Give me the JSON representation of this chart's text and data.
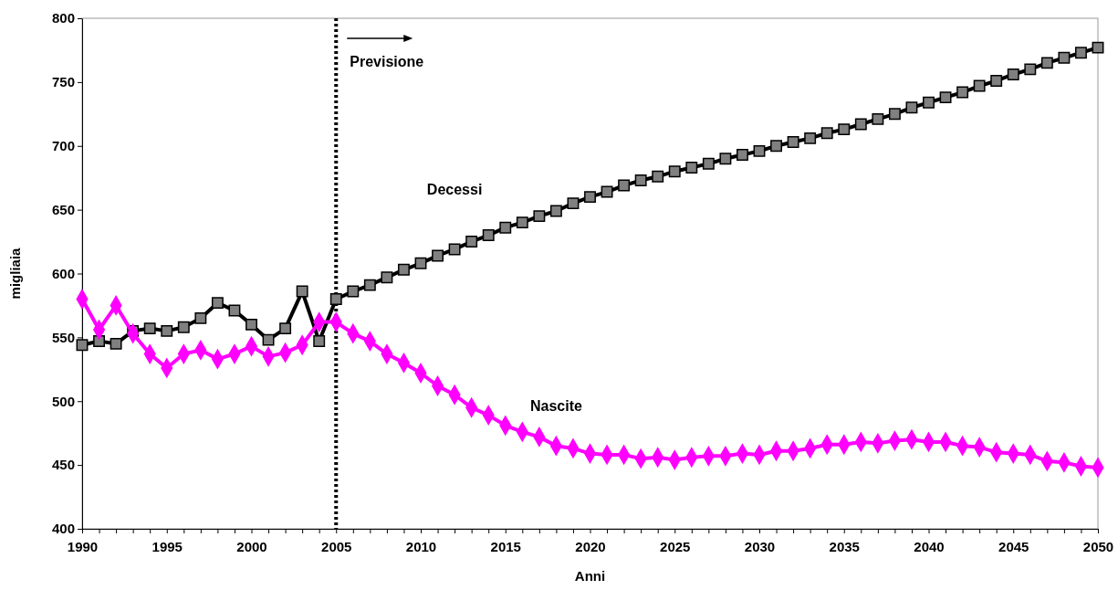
{
  "chart_data": {
    "type": "line",
    "xlabel": "Anni",
    "ylabel": "migliaia",
    "x": [
      1990,
      1991,
      1992,
      1993,
      1994,
      1995,
      1996,
      1997,
      1998,
      1999,
      2000,
      2001,
      2002,
      2003,
      2004,
      2005,
      2006,
      2007,
      2008,
      2009,
      2010,
      2011,
      2012,
      2013,
      2014,
      2015,
      2016,
      2017,
      2018,
      2019,
      2020,
      2021,
      2022,
      2023,
      2024,
      2025,
      2026,
      2027,
      2028,
      2029,
      2030,
      2031,
      2032,
      2033,
      2034,
      2035,
      2036,
      2037,
      2038,
      2039,
      2040,
      2041,
      2042,
      2043,
      2044,
      2045,
      2046,
      2047,
      2048,
      2049,
      2050
    ],
    "series": [
      {
        "name": "Decessi",
        "color": "#000000",
        "marker": "square",
        "values": [
          544,
          547,
          545,
          555,
          557,
          555,
          558,
          565,
          577,
          571,
          560,
          548,
          557,
          586,
          547,
          580,
          586,
          591,
          597,
          603,
          608,
          614,
          619,
          625,
          630,
          636,
          640,
          645,
          649,
          655,
          660,
          664,
          669,
          673,
          676,
          680,
          683,
          686,
          690,
          693,
          696,
          700,
          703,
          706,
          710,
          713,
          717,
          721,
          725,
          730,
          734,
          738,
          742,
          747,
          751,
          756,
          760,
          765,
          769,
          773,
          777
        ]
      },
      {
        "name": "Nascite",
        "color": "#ff00ff",
        "marker": "diamond",
        "values": [
          580,
          556,
          575,
          553,
          537,
          526,
          537,
          540,
          533,
          537,
          543,
          535,
          538,
          544,
          562,
          562,
          553,
          547,
          537,
          530,
          522,
          512,
          505,
          495,
          489,
          481,
          476,
          472,
          465,
          463,
          459,
          458,
          458,
          455,
          456,
          454,
          456,
          457,
          457,
          459,
          458,
          461,
          461,
          463,
          466,
          466,
          468,
          467,
          469,
          470,
          468,
          468,
          465,
          464,
          460,
          459,
          458,
          453,
          452,
          449,
          448
        ]
      }
    ],
    "xlim": [
      1990,
      2050
    ],
    "xticks": [
      1990,
      {
        "value": 1991,
        "label": null
      },
      {
        "value": 1992,
        "label": null
      },
      {
        "value": 1993,
        "label": null
      },
      {
        "value": 1994,
        "label": null
      },
      1995,
      {
        "value": 1996,
        "label": null
      },
      {
        "value": 1997,
        "label": null
      },
      {
        "value": 1998,
        "label": null
      },
      {
        "value": 1999,
        "label": null
      },
      2000,
      {
        "value": 2001,
        "label": null
      },
      {
        "value": 2002,
        "label": null
      },
      {
        "value": 2003,
        "label": null
      },
      {
        "value": 2004,
        "label": null
      },
      2005,
      {
        "value": 2006,
        "label": null
      },
      {
        "value": 2007,
        "label": null
      },
      {
        "value": 2008,
        "label": null
      },
      {
        "value": 2009,
        "label": null
      },
      2010,
      {
        "value": 2011,
        "label": null
      },
      {
        "value": 2012,
        "label": null
      },
      {
        "value": 2013,
        "label": null
      },
      {
        "value": 2014,
        "label": null
      },
      2015,
      {
        "value": 2016,
        "label": null
      },
      {
        "value": 2017,
        "label": null
      },
      {
        "value": 2018,
        "label": null
      },
      {
        "value": 2019,
        "label": null
      },
      2020,
      {
        "value": 2021,
        "label": null
      },
      {
        "value": 2022,
        "label": null
      },
      {
        "value": 2023,
        "label": null
      },
      {
        "value": 2024,
        "label": null
      },
      2025,
      {
        "value": 2026,
        "label": null
      },
      {
        "value": 2027,
        "label": null
      },
      {
        "value": 2028,
        "label": null
      },
      {
        "value": 2029,
        "label": null
      },
      2030,
      {
        "value": 2031,
        "label": null
      },
      {
        "value": 2032,
        "label": null
      },
      {
        "value": 2033,
        "label": null
      },
      {
        "value": 2034,
        "label": null
      },
      2035,
      {
        "value": 2036,
        "label": null
      },
      {
        "value": 2037,
        "label": null
      },
      {
        "value": 2038,
        "label": null
      },
      {
        "value": 2039,
        "label": null
      },
      2040,
      {
        "value": 2041,
        "label": null
      },
      {
        "value": 2042,
        "label": null
      },
      {
        "value": 2043,
        "label": null
      },
      {
        "value": 2044,
        "label": null
      },
      2045,
      {
        "value": 2046,
        "label": null
      },
      {
        "value": 2047,
        "label": null
      },
      {
        "value": 2048,
        "label": null
      },
      {
        "value": 2049,
        "label": null
      },
      2050
    ],
    "ylim": [
      400,
      800
    ],
    "yticks": [
      400,
      450,
      500,
      550,
      600,
      650,
      700,
      750,
      800
    ],
    "ref_lines": [
      {
        "axis": "x",
        "value": 2005,
        "label": "Previsione",
        "color": "#000000",
        "line_style": "dotted"
      }
    ],
    "grid": false,
    "legend": false
  }
}
